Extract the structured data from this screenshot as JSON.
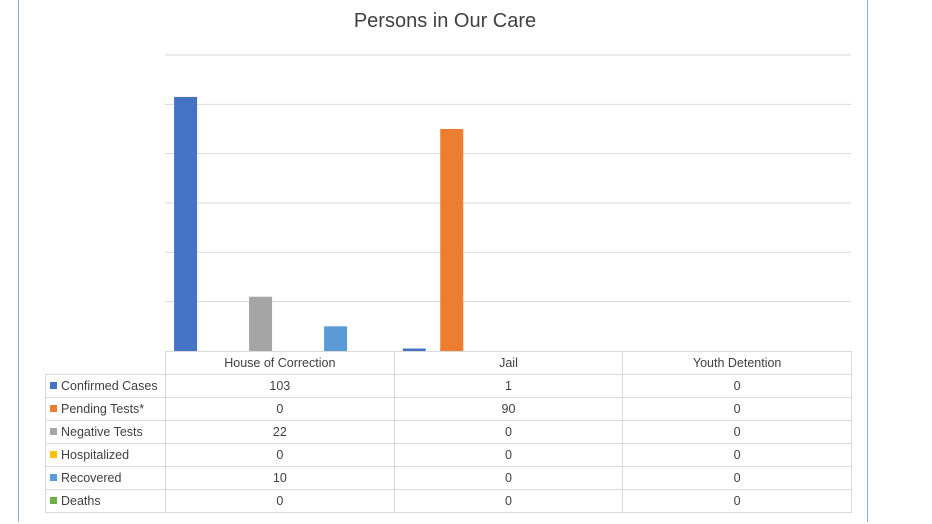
{
  "chart_data": {
    "type": "bar",
    "title": "Persons in Our Care",
    "categories": [
      "House of Correction",
      "Jail",
      "Youth Detention"
    ],
    "series": [
      {
        "name": "Confirmed Cases",
        "color": "#4472c4",
        "values": [
          103,
          1,
          0
        ]
      },
      {
        "name": "Pending Tests*",
        "color": "#ed7d31",
        "values": [
          0,
          90,
          0
        ]
      },
      {
        "name": "Negative Tests",
        "color": "#a5a5a5",
        "values": [
          22,
          0,
          0
        ]
      },
      {
        "name": "Hospitalized",
        "color": "#ffc000",
        "values": [
          0,
          0,
          0
        ]
      },
      {
        "name": "Recovered",
        "color": "#5b9bd5",
        "values": [
          10,
          0,
          0
        ]
      },
      {
        "name": "Deaths",
        "color": "#70ad47",
        "values": [
          0,
          0,
          0
        ]
      }
    ],
    "ylim": [
      0,
      120
    ],
    "grid": true,
    "legend": "data table"
  }
}
